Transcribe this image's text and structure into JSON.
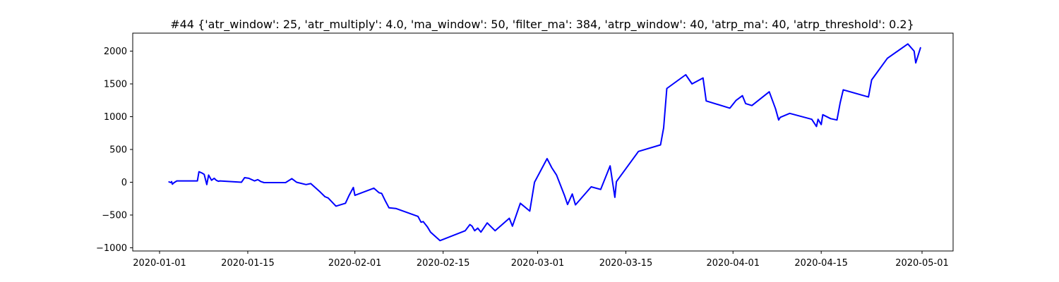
{
  "chart_data": {
    "type": "line",
    "title": "#44 {'atr_window': 25, 'atr_multiply': 4.0, 'ma_window': 50, 'filter_ma': 384, 'atrp_window': 40, 'atrp_ma': 40, 'atrp_threshold': 0.2}",
    "xlabel": "",
    "ylabel": "",
    "grid": false,
    "legend": "none",
    "line_color": "#0000ff",
    "xlim": [
      "2020-01-04",
      "2020-05-04"
    ],
    "ylim": [
      -1050,
      2270
    ],
    "x_ticks": [
      "2020-01-01",
      "2020-01-15",
      "2020-02-01",
      "2020-02-15",
      "2020-03-01",
      "2020-03-15",
      "2020-04-01",
      "2020-04-15",
      "2020-05-01"
    ],
    "y_ticks": [
      -1000,
      -500,
      0,
      500,
      1000,
      1500,
      2000
    ],
    "series": [
      {
        "points": [
          [
            "2020-01-02 12:00",
            5
          ],
          [
            "2020-01-02 19:00",
            -5
          ],
          [
            "2020-01-02 22:00",
            10
          ],
          [
            "2020-01-03 01:00",
            -30
          ],
          [
            "2020-01-03 06:00",
            -10
          ],
          [
            "2020-01-03 18:00",
            20
          ],
          [
            "2020-01-07 00:00",
            20
          ],
          [
            "2020-01-07 06:00",
            160
          ],
          [
            "2020-01-07 18:00",
            140
          ],
          [
            "2020-01-08 02:00",
            120
          ],
          [
            "2020-01-08 12:00",
            -35
          ],
          [
            "2020-01-08 19:00",
            110
          ],
          [
            "2020-01-09 06:00",
            30
          ],
          [
            "2020-01-09 16:00",
            60
          ],
          [
            "2020-01-10 00:00",
            30
          ],
          [
            "2020-01-10 08:00",
            15
          ],
          [
            "2020-01-10 14:00",
            20
          ],
          [
            "2020-01-14 00:00",
            0
          ],
          [
            "2020-01-14 12:00",
            70
          ],
          [
            "2020-01-15 04:00",
            60
          ],
          [
            "2020-01-16 02:00",
            20
          ],
          [
            "2020-01-16 14:00",
            40
          ],
          [
            "2020-01-17 02:00",
            10
          ],
          [
            "2020-01-17 14:00",
            -5
          ],
          [
            "2020-01-21 00:00",
            -5
          ],
          [
            "2020-01-22 00:00",
            55
          ],
          [
            "2020-01-22 18:00",
            0
          ],
          [
            "2020-01-24 06:00",
            -35
          ],
          [
            "2020-01-25 00:00",
            -20
          ],
          [
            "2020-01-26 12:00",
            -150
          ],
          [
            "2020-01-27 06:00",
            -220
          ],
          [
            "2020-01-27 18:00",
            -240
          ],
          [
            "2020-01-29 00:00",
            -365
          ],
          [
            "2020-01-30 12:00",
            -320
          ],
          [
            "2020-01-31 02:00",
            -200
          ],
          [
            "2020-01-31 18:00",
            -80
          ],
          [
            "2020-02-01 00:00",
            -200
          ],
          [
            "2020-02-04 00:00",
            -90
          ],
          [
            "2020-02-04 20:00",
            -160
          ],
          [
            "2020-02-05 06:00",
            -170
          ],
          [
            "2020-02-05 18:00",
            -270
          ],
          [
            "2020-02-06 10:00",
            -390
          ],
          [
            "2020-02-07 12:00",
            -400
          ],
          [
            "2020-02-11 00:00",
            -520
          ],
          [
            "2020-02-11 12:00",
            -610
          ],
          [
            "2020-02-11 20:00",
            -600
          ],
          [
            "2020-02-12 12:00",
            -680
          ],
          [
            "2020-02-13 00:00",
            -760
          ],
          [
            "2020-02-14 12:00",
            -890
          ],
          [
            "2020-02-18 12:00",
            -740
          ],
          [
            "2020-02-19 06:00",
            -645
          ],
          [
            "2020-02-19 14:00",
            -670
          ],
          [
            "2020-02-20 00:00",
            -740
          ],
          [
            "2020-02-20 12:00",
            -700
          ],
          [
            "2020-02-21 00:00",
            -760
          ],
          [
            "2020-02-22 00:00",
            -620
          ],
          [
            "2020-02-23 06:00",
            -740
          ],
          [
            "2020-02-25 12:00",
            -550
          ],
          [
            "2020-02-26 00:00",
            -670
          ],
          [
            "2020-02-27 06:00",
            -320
          ],
          [
            "2020-02-28 18:00",
            -440
          ],
          [
            "2020-02-29 12:00",
            0
          ],
          [
            "2020-03-02 12:00",
            360
          ],
          [
            "2020-03-03 06:00",
            220
          ],
          [
            "2020-03-04 00:00",
            110
          ],
          [
            "2020-03-05 06:00",
            -200
          ],
          [
            "2020-03-05 18:00",
            -340
          ],
          [
            "2020-03-06 12:00",
            -180
          ],
          [
            "2020-03-07 00:00",
            -345
          ],
          [
            "2020-03-09 12:00",
            -70
          ],
          [
            "2020-03-11 00:00",
            -110
          ],
          [
            "2020-03-12 12:00",
            250
          ],
          [
            "2020-03-13 06:00",
            -230
          ],
          [
            "2020-03-13 12:00",
            10
          ],
          [
            "2020-03-17 00:00",
            470
          ],
          [
            "2020-03-20 12:00",
            570
          ],
          [
            "2020-03-21 00:00",
            830
          ],
          [
            "2020-03-21 12:00",
            1430
          ],
          [
            "2020-03-24 12:00",
            1640
          ],
          [
            "2020-03-25 12:00",
            1500
          ],
          [
            "2020-03-27 06:00",
            1590
          ],
          [
            "2020-03-27 18:00",
            1240
          ],
          [
            "2020-03-31 12:00",
            1130
          ],
          [
            "2020-04-01 12:00",
            1250
          ],
          [
            "2020-04-02 12:00",
            1320
          ],
          [
            "2020-04-03 00:00",
            1200
          ],
          [
            "2020-04-04 00:00",
            1170
          ],
          [
            "2020-04-06 18:00",
            1380
          ],
          [
            "2020-04-07 18:00",
            1120
          ],
          [
            "2020-04-08 06:00",
            950
          ],
          [
            "2020-04-08 12:00",
            990
          ],
          [
            "2020-04-10 00:00",
            1050
          ],
          [
            "2020-04-13 12:00",
            960
          ],
          [
            "2020-04-14 06:00",
            850
          ],
          [
            "2020-04-14 12:00",
            960
          ],
          [
            "2020-04-15 00:00",
            880
          ],
          [
            "2020-04-15 06:00",
            1030
          ],
          [
            "2020-04-16 12:00",
            970
          ],
          [
            "2020-04-17 12:00",
            950
          ],
          [
            "2020-04-18 00:00",
            1210
          ],
          [
            "2020-04-18 12:00",
            1410
          ],
          [
            "2020-04-22 12:00",
            1300
          ],
          [
            "2020-04-23 00:00",
            1560
          ],
          [
            "2020-04-25 12:00",
            1890
          ],
          [
            "2020-04-28 18:00",
            2110
          ],
          [
            "2020-04-29 18:00",
            2000
          ],
          [
            "2020-04-30 00:00",
            1820
          ],
          [
            "2020-04-30 18:00",
            2050
          ]
        ]
      }
    ]
  }
}
